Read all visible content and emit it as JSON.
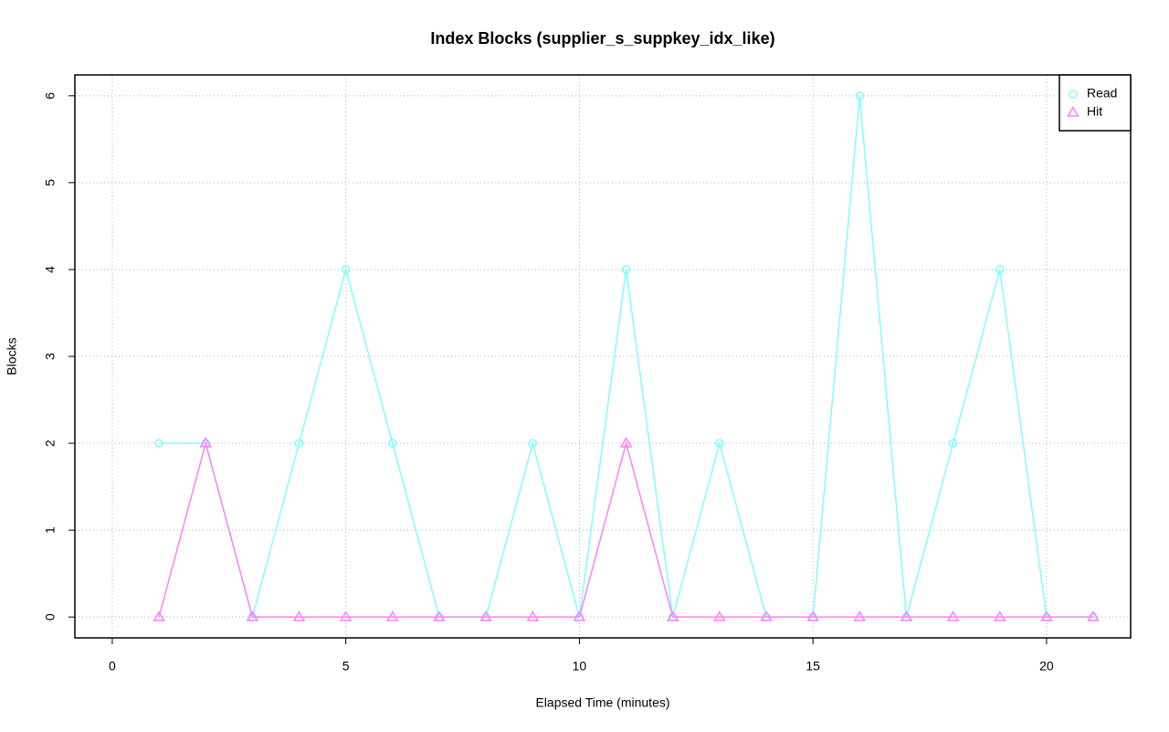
{
  "chart_data": {
    "type": "line",
    "title": "Index Blocks (supplier_s_suppkey_idx_like)",
    "x_label": "Elapsed Time (minutes)",
    "y_label": "Blocks",
    "x": [
      1,
      2,
      3,
      4,
      5,
      6,
      7,
      8,
      9,
      10,
      11,
      12,
      13,
      14,
      15,
      16,
      17,
      18,
      19,
      20,
      21
    ],
    "series": [
      {
        "name": "Read",
        "color": "#7fffff",
        "marker": "circle",
        "values": [
          2,
          2,
          0,
          2,
          4,
          2,
          0,
          0,
          2,
          0,
          4,
          0,
          2,
          0,
          0,
          6,
          0,
          2,
          4,
          0,
          0
        ]
      },
      {
        "name": "Hit",
        "color": "#ff80ff",
        "marker": "triangle",
        "values": [
          0,
          2,
          0,
          0,
          0,
          0,
          0,
          0,
          0,
          0,
          2,
          0,
          0,
          0,
          0,
          0,
          0,
          0,
          0,
          0,
          0
        ]
      }
    ],
    "xlim": [
      -0.8,
      21.8
    ],
    "xticks": [
      0,
      5,
      10,
      15,
      20
    ],
    "ylim": [
      -0.24,
      6.24
    ],
    "yticks": [
      0,
      1,
      2,
      3,
      4,
      5,
      6
    ],
    "grid": true,
    "legend": "top-right"
  }
}
